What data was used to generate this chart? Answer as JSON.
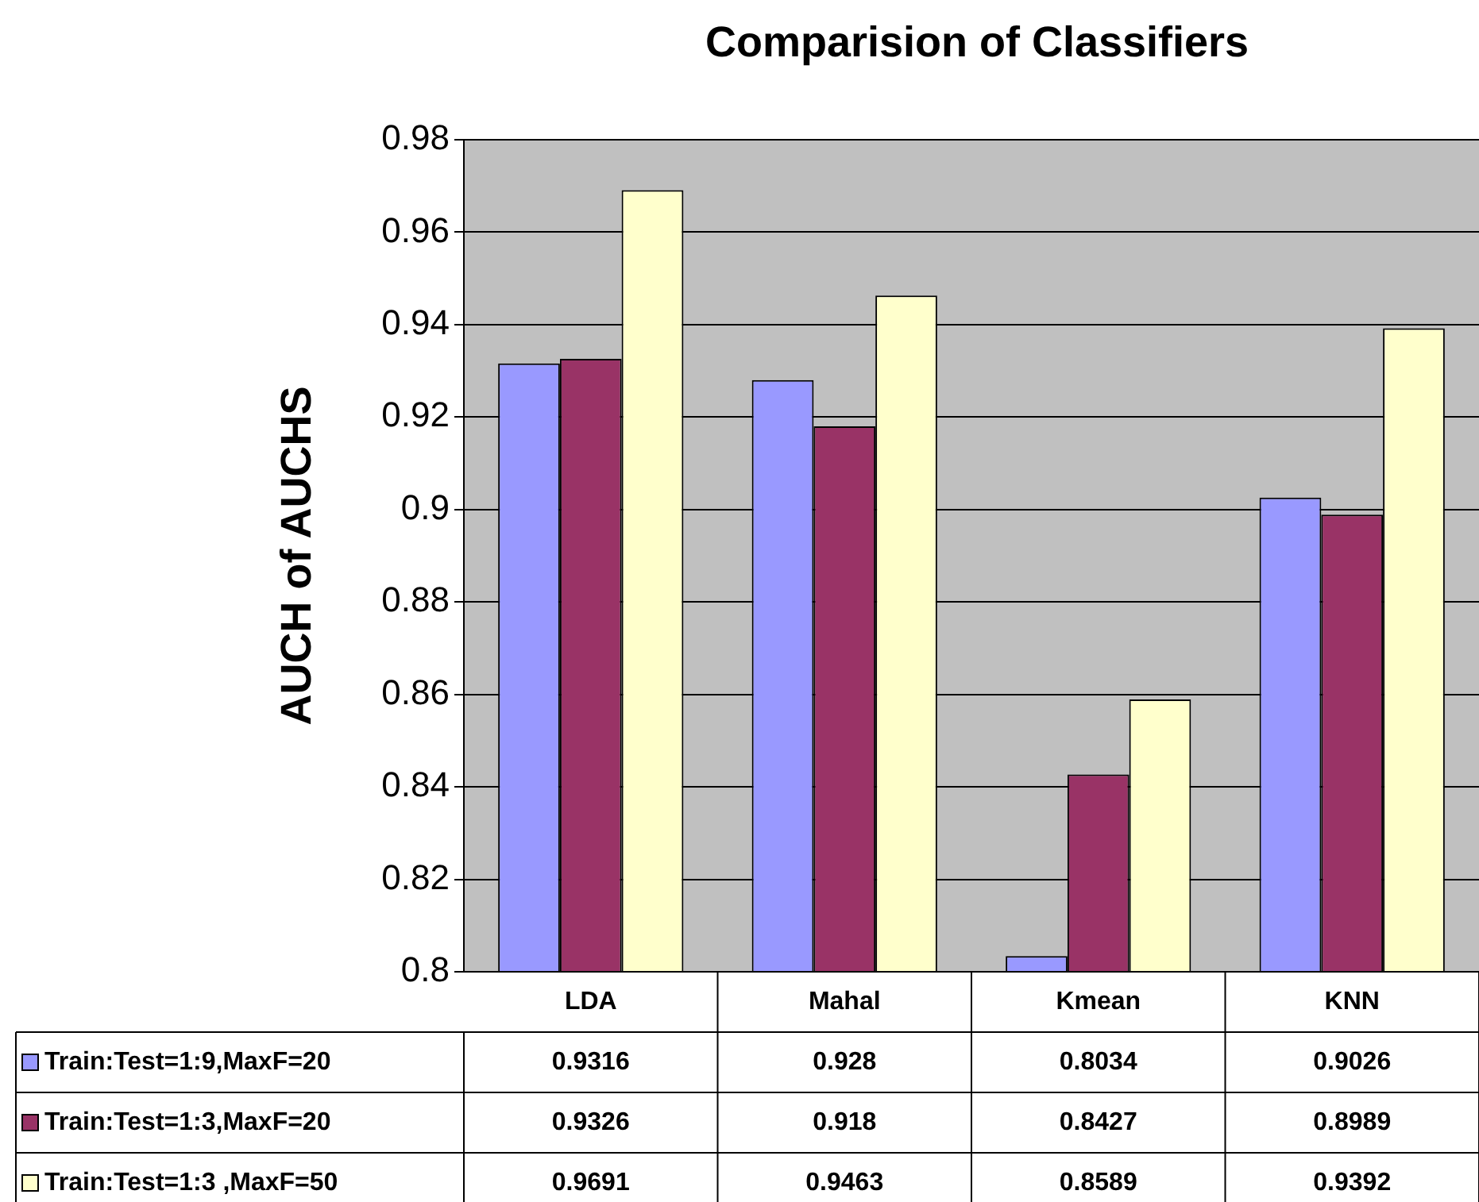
{
  "chart_data": {
    "type": "bar",
    "title": "Comparision of Classifiers",
    "ylabel": "AUCH of AUCHS",
    "categories": [
      "LDA",
      "Mahal",
      "Kmean",
      "KNN"
    ],
    "series": [
      {
        "name": "Train:Test=1:9,MaxF=20",
        "color": "#9999ff",
        "values": [
          0.9316,
          0.928,
          0.8034,
          0.9026
        ]
      },
      {
        "name": "Train:Test=1:3,MaxF=20",
        "color": "#993366",
        "values": [
          0.9326,
          0.918,
          0.8427,
          0.8989
        ]
      },
      {
        "name": "Train:Test=1:3 ,MaxF=50",
        "color": "#ffffcc",
        "values": [
          0.9691,
          0.9463,
          0.8589,
          0.9392
        ]
      }
    ],
    "ylim": [
      0.8,
      0.98
    ],
    "yticks": [
      0.8,
      0.82,
      0.84,
      0.86,
      0.88,
      0.9,
      0.92,
      0.94,
      0.96,
      0.98
    ],
    "grid": "y",
    "legend": "bottom left",
    "data_labels": true
  }
}
